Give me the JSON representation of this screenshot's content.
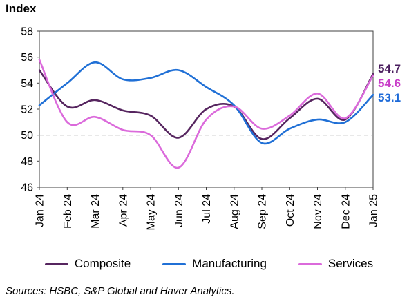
{
  "title": "Index",
  "sources_note": "Sources: HSBC, S&P Global and Haver Analytics.",
  "colors": {
    "composite": "#56255F",
    "manufacturing": "#2070D6",
    "services": "#DB6ADB",
    "composite_label": "#4A1D5E",
    "manufacturing_label": "#1D6AD8",
    "services_label": "#C83CC8",
    "reference_line": "#A6A6A6",
    "axis": "#404040",
    "tick_text": "#000000"
  },
  "chart_data": {
    "type": "line",
    "title": "Index",
    "categories": [
      "Jan 24",
      "Feb 24",
      "Mar 24",
      "Apr 24",
      "May 24",
      "Jun 24",
      "Jul 24",
      "Aug 24",
      "Sep 24",
      "Oct 24",
      "Nov 24",
      "Dec 24",
      "Jan 25"
    ],
    "series": [
      {
        "name": "Composite",
        "color_key": "composite",
        "values": [
          55.0,
          52.2,
          52.7,
          51.9,
          51.5,
          49.8,
          52.0,
          52.2,
          49.7,
          51.3,
          52.8,
          51.2,
          54.7
        ]
      },
      {
        "name": "Manufacturing",
        "color_key": "manufacturing",
        "values": [
          52.3,
          54.0,
          55.6,
          54.3,
          54.4,
          55.0,
          53.7,
          52.3,
          49.4,
          50.5,
          51.2,
          51.0,
          53.1
        ]
      },
      {
        "name": "Services",
        "color_key": "services",
        "values": [
          55.8,
          51.0,
          51.4,
          50.4,
          50.0,
          47.5,
          51.2,
          52.2,
          50.5,
          51.5,
          53.2,
          51.3,
          54.6
        ]
      }
    ],
    "ylim": [
      46,
      58
    ],
    "y_ticks": [
      58,
      56,
      54,
      52,
      50,
      48,
      46
    ],
    "reference_line": 50,
    "grid": false,
    "legend_position": "bottom",
    "smoothed_lines": true
  },
  "end_labels": [
    {
      "text": "54.7",
      "series": "Composite",
      "color_key": "composite_label"
    },
    {
      "text": "54.6",
      "series": "Services",
      "color_key": "services_label"
    },
    {
      "text": "53.1",
      "series": "Manufacturing",
      "color_key": "manufacturing_label"
    }
  ],
  "legend": {
    "items": [
      {
        "label": "Composite",
        "color_key": "composite"
      },
      {
        "label": "Manufacturing",
        "color_key": "manufacturing"
      },
      {
        "label": "Services",
        "color_key": "services"
      }
    ]
  }
}
